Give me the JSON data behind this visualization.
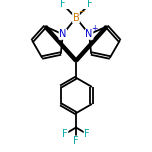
{
  "bg_color": "#ffffff",
  "bond_color": "#000000",
  "line_width": 1.3,
  "atom_colors": {
    "B": "#cc7700",
    "N": "#0000cc",
    "F": "#00aaaa",
    "C": "#000000"
  },
  "figsize": [
    1.52,
    1.52
  ],
  "dpi": 100,
  "xlim": [
    -2.0,
    2.0
  ],
  "ylim": [
    -3.5,
    2.0
  ]
}
